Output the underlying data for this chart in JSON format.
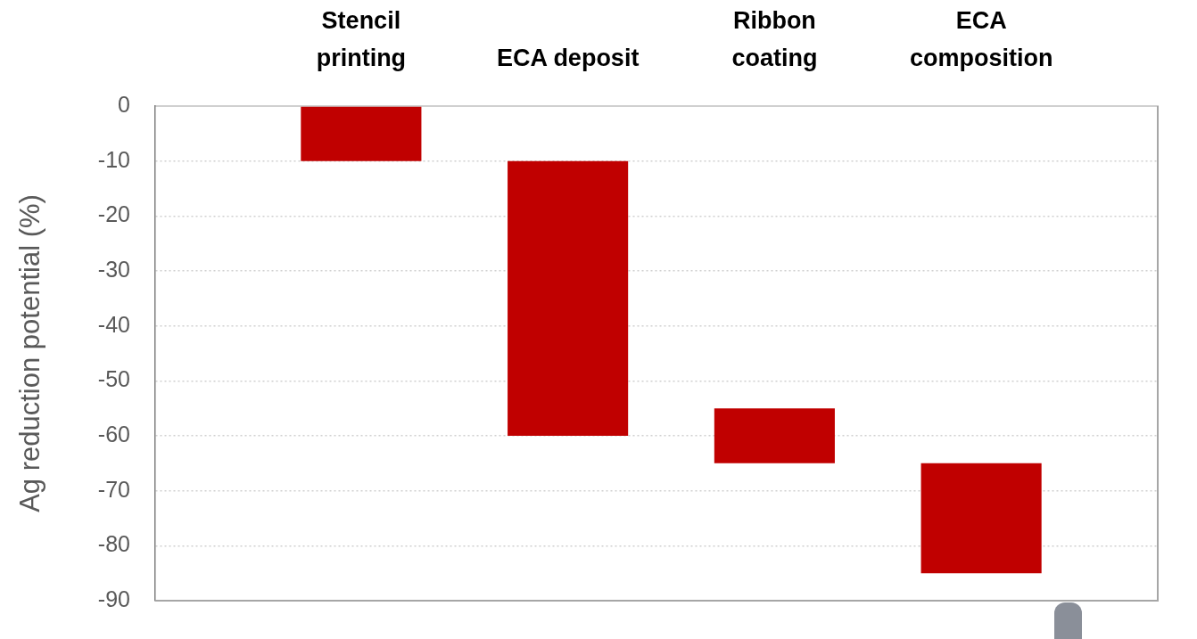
{
  "chart_data": {
    "type": "bar",
    "categories": [
      "Stencil printing",
      "ECA deposit",
      "Ribbon coating",
      "ECA composition"
    ],
    "base": [
      0,
      -10,
      -55,
      -65
    ],
    "values": [
      -10,
      -50,
      -10,
      -20
    ],
    "color": "#c00000",
    "ylabel": "Ag reduction potential (%)",
    "ylim": [
      -90,
      0
    ],
    "yticks": [
      0,
      -10,
      -20,
      -30,
      -40,
      -50,
      -60,
      -70,
      -80,
      -90
    ],
    "grid": "y"
  }
}
